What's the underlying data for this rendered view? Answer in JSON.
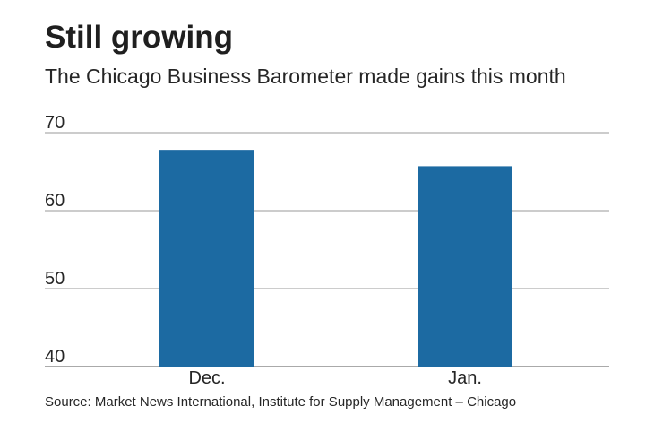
{
  "chart_data": {
    "type": "bar",
    "title": "Still growing",
    "subtitle": "The Chicago Business Barometer made gains this month",
    "categories": [
      "Dec.",
      "Jan."
    ],
    "values": [
      67.8,
      65.7
    ],
    "ylim": [
      40,
      70
    ],
    "yticks": [
      "70",
      "60",
      "50",
      "40"
    ],
    "grid": true,
    "bar_color": "#1c6aa2",
    "source": "Source: Market News International, Institute for Supply Management – Chicago"
  }
}
